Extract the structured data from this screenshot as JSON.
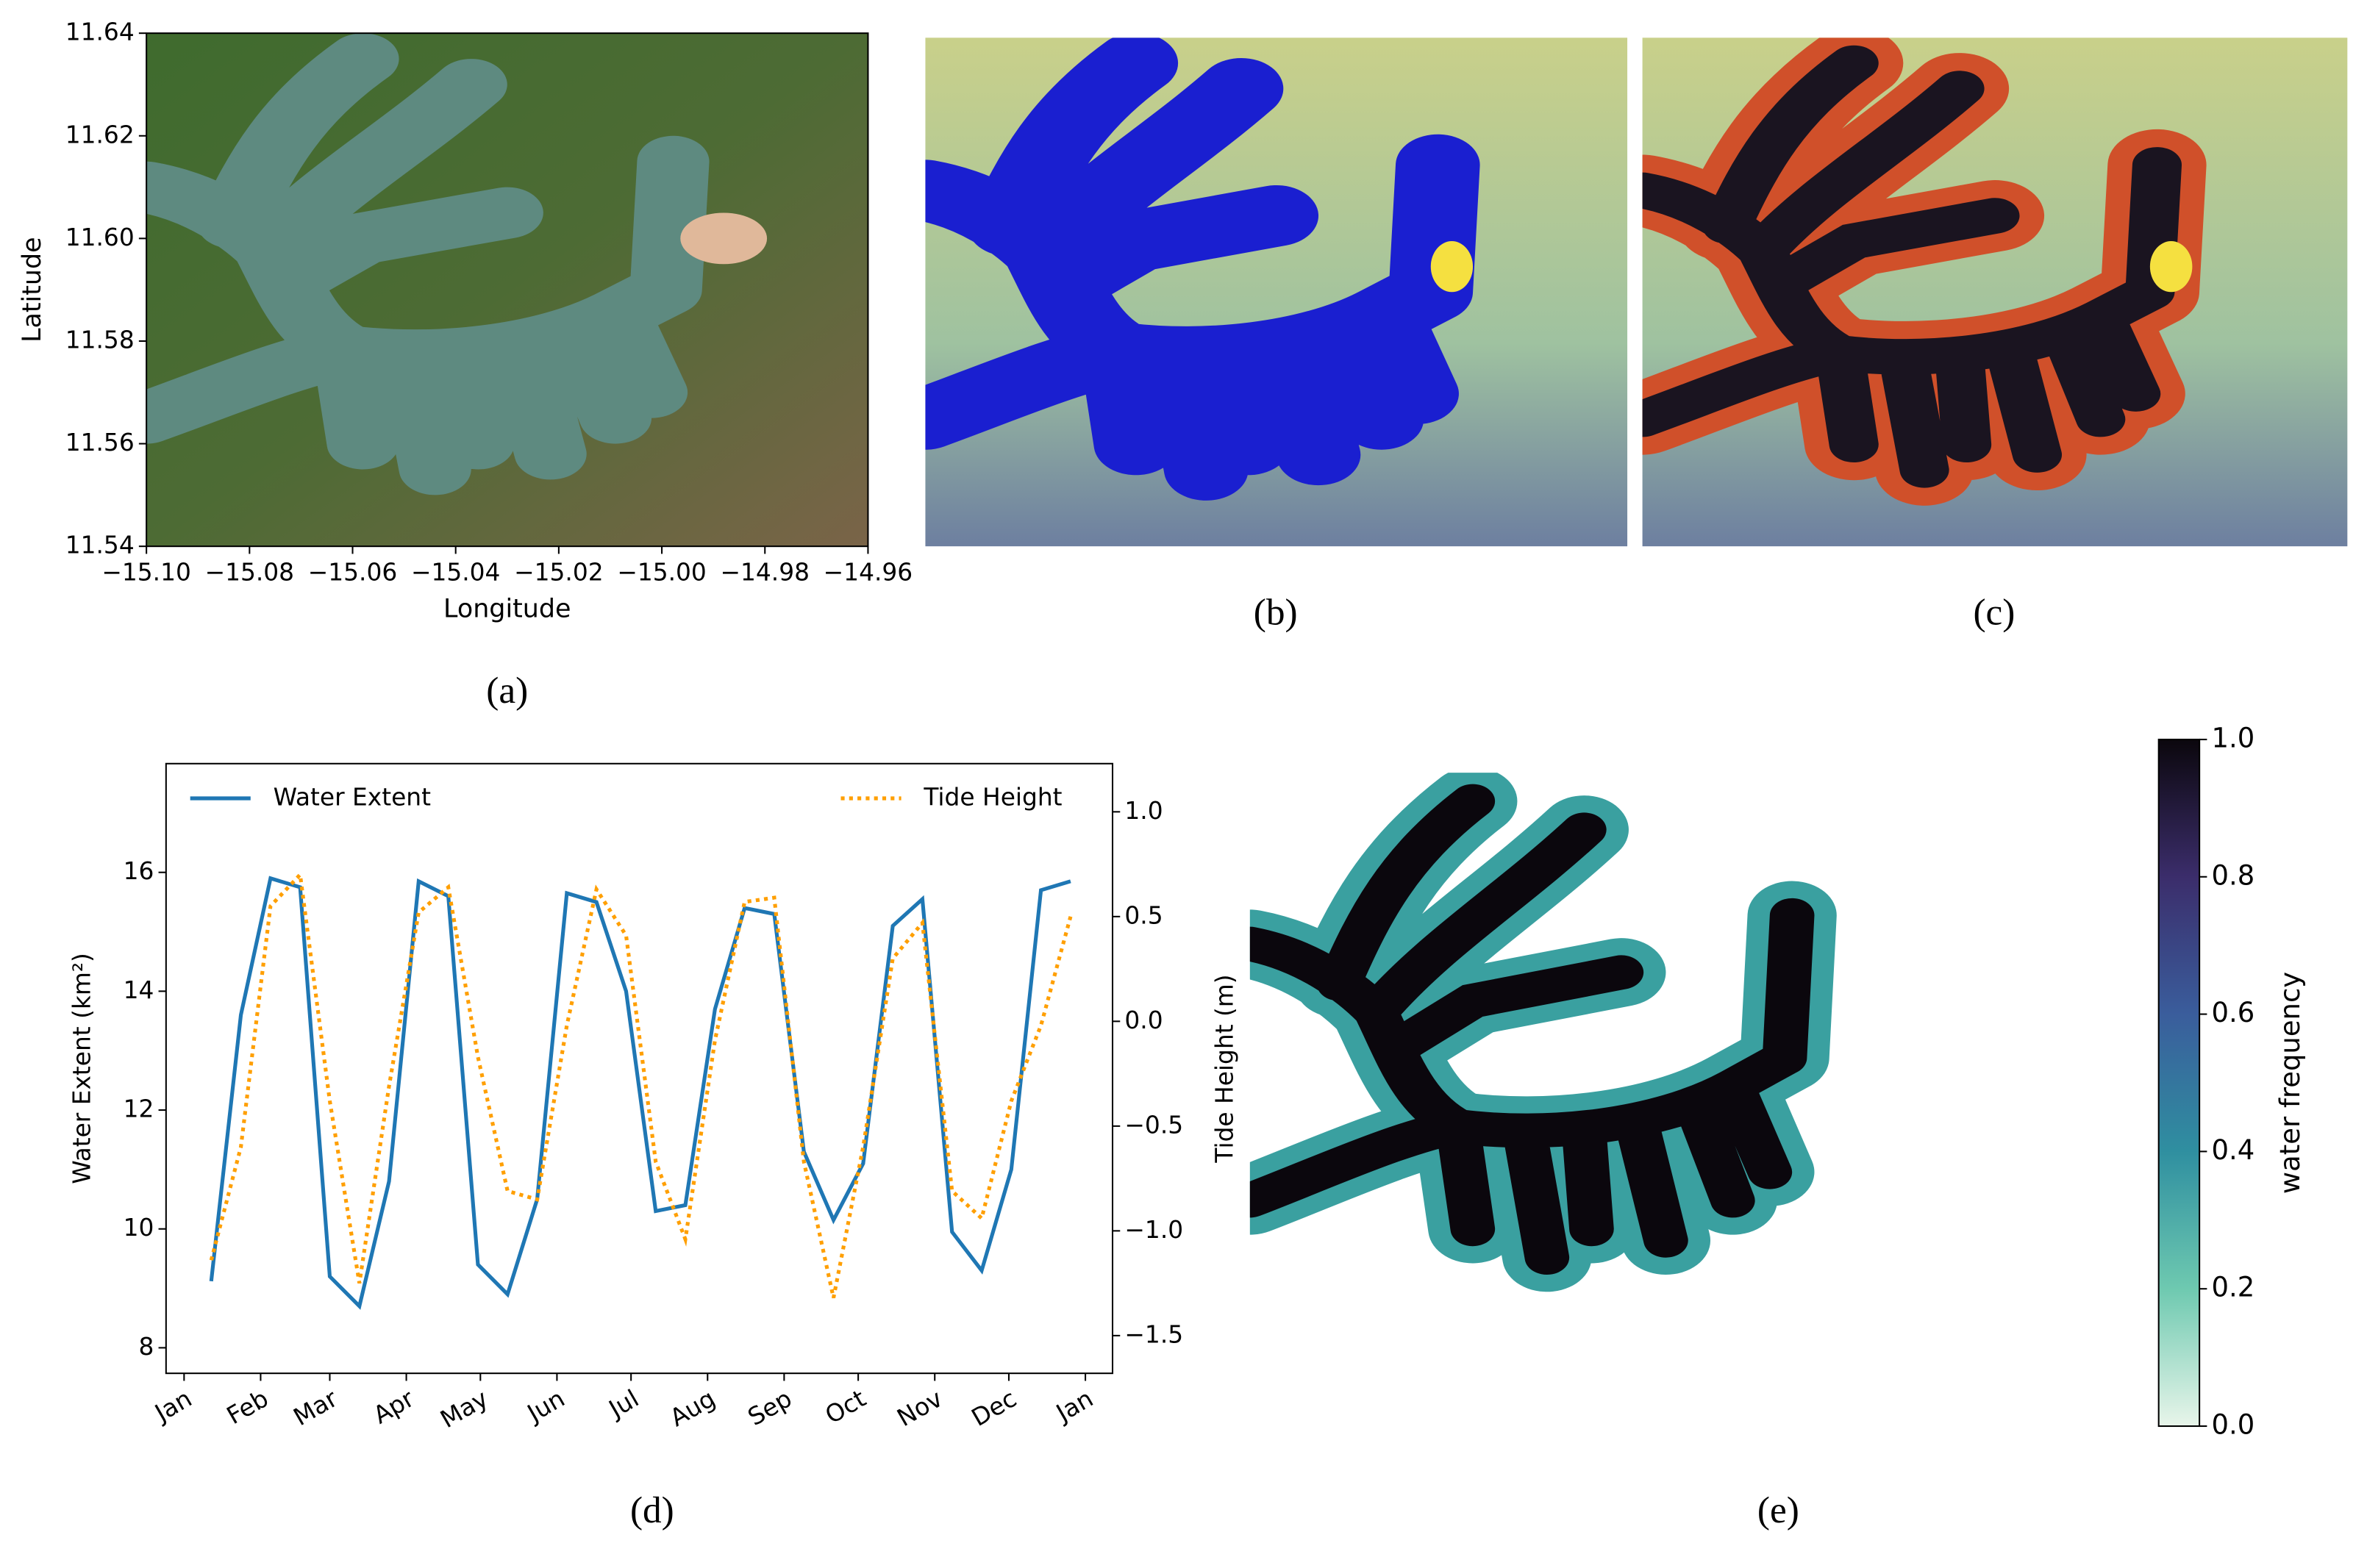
{
  "chart_data": [
    {
      "type": "image",
      "panel": "(a)",
      "xlabel": "Longitude",
      "ylabel": "Latitude",
      "xlim": [
        -15.1,
        -14.96
      ],
      "ylim": [
        11.54,
        11.64
      ],
      "xticks": [
        {
          "value": -15.1,
          "label": "−15.10"
        },
        {
          "value": -15.08,
          "label": "−15.08"
        },
        {
          "value": -15.06,
          "label": "−15.06"
        },
        {
          "value": -15.04,
          "label": "−15.04"
        },
        {
          "value": -15.02,
          "label": "−15.02"
        },
        {
          "value": -15.0,
          "label": "−15.00"
        },
        {
          "value": -14.98,
          "label": "−14.98"
        },
        {
          "value": -14.96,
          "label": "−14.96"
        }
      ],
      "yticks": [
        11.54,
        11.56,
        11.58,
        {
          "value": 11.6,
          "label": "11.60"
        },
        11.62,
        11.64
      ]
    },
    {
      "type": "image",
      "panel": "(b)"
    },
    {
      "type": "image",
      "panel": "(c)"
    },
    {
      "type": "line",
      "panel": "(d)",
      "ylabel": "Water Extent (km²)",
      "y2label": "Tide Height (m)",
      "legend": "top",
      "x": [
        11,
        23,
        35,
        47,
        59,
        71,
        83,
        95,
        107,
        119,
        131,
        143,
        155,
        167,
        179,
        191,
        203,
        215,
        227,
        239,
        251,
        263,
        275,
        287,
        299,
        311,
        323,
        335,
        347,
        359
      ],
      "xlim": [
        -7.3,
        376
      ],
      "xticks": [
        {
          "value": 0,
          "label": "Jan"
        },
        {
          "value": 31,
          "label": "Feb"
        },
        {
          "value": 59,
          "label": "Mar"
        },
        {
          "value": 90,
          "label": "Apr"
        },
        {
          "value": 120,
          "label": "May"
        },
        {
          "value": 151,
          "label": "Jun"
        },
        {
          "value": 181,
          "label": "Jul"
        },
        {
          "value": 212,
          "label": "Aug"
        },
        {
          "value": 243,
          "label": "Sep"
        },
        {
          "value": 273,
          "label": "Oct"
        },
        {
          "value": 304,
          "label": "Nov"
        },
        {
          "value": 334,
          "label": "Dec"
        },
        {
          "value": 365,
          "label": "Jan"
        }
      ],
      "ylim": [
        7.57,
        17.83
      ],
      "yticks": [
        8,
        10,
        12,
        14,
        16
      ],
      "y2lim": [
        -1.68,
        1.23
      ],
      "y2ticks": [
        {
          "value": -1.5,
          "label": "−1.5"
        },
        {
          "value": -1.0,
          "label": "−1.0"
        },
        {
          "value": -0.5,
          "label": "−0.5"
        },
        {
          "value": 0,
          "label": "0.0"
        },
        0.5,
        {
          "value": 1.0,
          "label": "1.0"
        }
      ],
      "series": [
        {
          "name": "Water Extent",
          "color": "#1f77b4",
          "linestyle": "solid",
          "values": [
            9.12,
            13.6,
            15.9,
            15.75,
            9.2,
            8.7,
            10.8,
            15.85,
            15.6,
            9.4,
            8.9,
            10.5,
            15.65,
            15.5,
            14.0,
            10.3,
            10.4,
            13.7,
            15.4,
            15.3,
            11.3,
            10.15,
            11.1,
            15.1,
            15.55,
            9.95,
            9.3,
            11.0,
            15.7,
            15.85
          ]
        },
        {
          "name": "Tide Height",
          "color": "#ff9f00",
          "linestyle": "dotted",
          "axis": "y2",
          "values": [
            -1.14,
            -0.6,
            0.55,
            0.7,
            -0.38,
            -1.25,
            -0.31,
            0.52,
            0.64,
            -0.17,
            -0.81,
            -0.85,
            -0.02,
            0.63,
            0.41,
            -0.67,
            -1.04,
            -0.09,
            0.57,
            0.59,
            -0.67,
            -1.32,
            -0.6,
            0.3,
            0.47,
            -0.81,
            -0.94,
            -0.38,
            -0.02,
            0.5
          ]
        }
      ]
    },
    {
      "type": "colorbar",
      "panel": "(e)",
      "label": "water frequency",
      "ylim": [
        0,
        1
      ],
      "yticks": [
        {
          "value": 0,
          "label": "0.0"
        },
        0.2,
        0.4,
        0.6,
        0.8,
        {
          "value": 1,
          "label": "1.0"
        }
      ],
      "colormap": [
        "#e8f5ea",
        "#6ec9b0",
        "#2f8fa0",
        "#3a5d9c",
        "#3b2d6b",
        "#0b070d"
      ]
    }
  ]
}
